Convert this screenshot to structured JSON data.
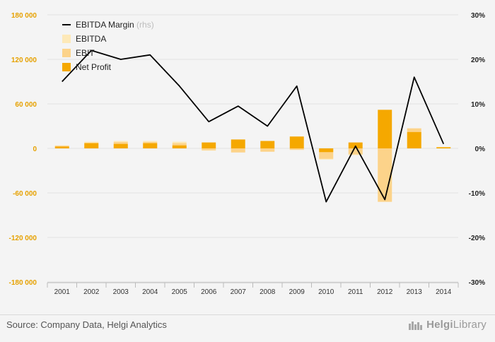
{
  "chart_data": {
    "type": "bar",
    "categories": [
      "2001",
      "2002",
      "2003",
      "2004",
      "2005",
      "2006",
      "2007",
      "2008",
      "2009",
      "2010",
      "2011",
      "2012",
      "2013",
      "2014"
    ],
    "series": [
      {
        "name": "EBITDA",
        "kind": "bar",
        "axis": "left",
        "color": "#fde9b8",
        "values": [
          4000,
          9000,
          10000,
          10000,
          9000,
          -3000,
          -5000,
          -4000,
          -2000,
          -15000,
          -9000,
          -72000,
          27000,
          2000
        ]
      },
      {
        "name": "EBIT",
        "kind": "bar",
        "axis": "left",
        "color": "#fcd38a",
        "values": [
          3500,
          7500,
          8500,
          8500,
          7000,
          -2500,
          -5500,
          -4500,
          -2000,
          -14000,
          -8000,
          -72000,
          27000,
          1500
        ]
      },
      {
        "name": "Net Profit",
        "kind": "bar",
        "axis": "left",
        "color": "#f5a800",
        "values": [
          2500,
          7000,
          6000,
          7000,
          4000,
          8000,
          12000,
          10000,
          16000,
          -5000,
          8000,
          52000,
          22000,
          1500
        ]
      },
      {
        "name": "EBITDA Margin",
        "kind": "line",
        "axis": "right",
        "color": "#000000",
        "values": [
          15.0,
          22.0,
          20.0,
          21.0,
          14.0,
          6.0,
          9.5,
          5.0,
          14.0,
          -12.0,
          0.5,
          -11.5,
          16.0,
          1.0
        ]
      }
    ],
    "ylim_left": [
      -180000,
      180000
    ],
    "yticks_left": [
      "180 000",
      "120 000",
      "60 000",
      "0",
      "-60 000",
      "-120 000",
      "-180 000"
    ],
    "ylim_right": [
      -30,
      30
    ],
    "yticks_right": [
      "30%",
      "20%",
      "10%",
      "0%",
      "-10%",
      "-20%",
      "-30%"
    ],
    "legend": [
      {
        "label": "EBITDA Margin",
        "suffix": "(rhs)",
        "marker": "line",
        "color": "#000000"
      },
      {
        "label": "EBITDA",
        "suffix": "",
        "marker": "box",
        "color": "#fde9b8"
      },
      {
        "label": "EBIT",
        "suffix": "",
        "marker": "box",
        "color": "#fcd38a"
      },
      {
        "label": "Net Profit",
        "suffix": "",
        "marker": "box",
        "color": "#f5a800"
      }
    ],
    "legend_position": "top-left",
    "grid": true,
    "colors": {
      "left_axis_text": "#e6a100",
      "right_axis_text": "#222222",
      "grid": "#e2e2e2"
    }
  },
  "footer": {
    "source": "Source: Company Data, Helgi Analytics",
    "brand_bold": "Helgi",
    "brand_rest": "Library"
  }
}
